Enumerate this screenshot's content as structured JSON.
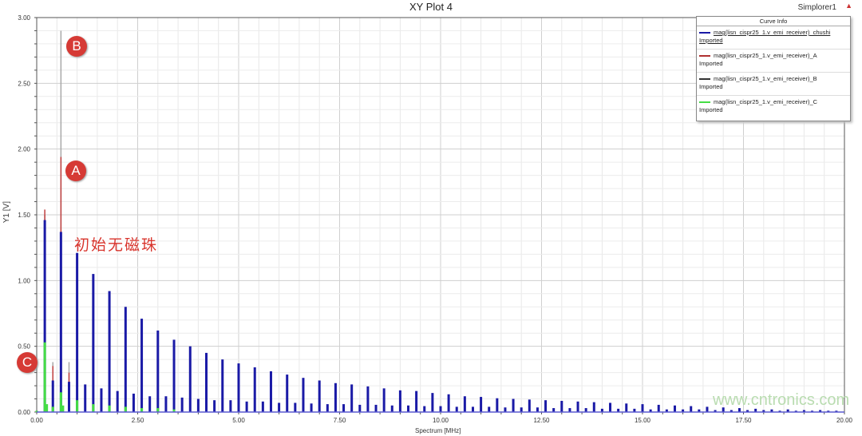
{
  "header": {
    "title": "XY Plot 4",
    "app": "Simplorer1"
  },
  "legend": {
    "title": "Curve Info",
    "items": [
      {
        "name": "mag(lisn_cispr25_1.v_emi_receiver)_chushi",
        "sub": "Imported",
        "color": "#1a1aa6"
      },
      {
        "name": "mag(lisn_cispr25_1.v_emi_receiver)_A",
        "sub": "Imported",
        "color": "#b03030"
      },
      {
        "name": "mag(lisn_cispr25_1.v_emi_receiver)_B",
        "sub": "Imported",
        "color": "#333333"
      },
      {
        "name": "mag(lisn_cispr25_1.v_emi_receiver)_C",
        "sub": "Imported",
        "color": "#44dd44"
      }
    ]
  },
  "annotations": {
    "a": "A",
    "b": "B",
    "c": "C",
    "note": "初始无磁珠",
    "watermark": "www.cntronics.com"
  },
  "chart_data": {
    "type": "bar",
    "title": "XY Plot 4",
    "xlabel": "Spectrum [MHz]",
    "ylabel": "Y1 [V]",
    "xlim": [
      0,
      20
    ],
    "ylim": [
      0,
      3
    ],
    "xticks": [
      "0.00",
      "2.50",
      "5.00",
      "7.50",
      "10.00",
      "12.50",
      "15.00",
      "17.50",
      "20.00"
    ],
    "yticks": [
      "0.00",
      "0.50",
      "1.00",
      "1.50",
      "2.00",
      "2.50",
      "3.00"
    ],
    "grid": true,
    "legend_position": "top-right",
    "series": [
      {
        "name": "mag(lisn_cispr25_1.v_emi_receiver)_B",
        "color": "#a8a8a8",
        "x": [
          0.2,
          0.4,
          0.6,
          0.8
        ],
        "y": [
          1.5,
          0.38,
          2.9,
          0.38
        ]
      },
      {
        "name": "mag(lisn_cispr25_1.v_emi_receiver)_A",
        "color": "#c04040",
        "x": [
          0.2,
          0.4,
          0.6,
          0.8,
          1.4
        ],
        "y": [
          1.54,
          0.35,
          1.94,
          0.3,
          0.45
        ]
      },
      {
        "name": "mag(lisn_cispr25_1.v_emi_receiver)_chushi",
        "color": "#1a1aa6",
        "x": [
          0.2,
          0.4,
          0.6,
          0.8,
          1.0,
          1.2,
          1.4,
          1.6,
          1.8,
          2.0,
          2.2,
          2.4,
          2.6,
          2.8,
          3.0,
          3.2,
          3.4,
          3.6,
          3.8,
          4.0,
          4.2,
          4.4,
          4.6,
          4.8,
          5.0,
          5.2,
          5.4,
          5.6,
          5.8,
          6.0,
          6.2,
          6.4,
          6.6,
          6.8,
          7.0,
          7.2,
          7.4,
          7.6,
          7.8,
          8.0,
          8.2,
          8.4,
          8.6,
          8.8,
          9.0,
          9.2,
          9.4,
          9.6,
          9.8,
          10.0,
          10.2,
          10.4,
          10.6,
          10.8,
          11.0,
          11.2,
          11.4,
          11.6,
          11.8,
          12.0,
          12.2,
          12.4,
          12.6,
          12.8,
          13.0,
          13.2,
          13.4,
          13.6,
          13.8,
          14.0,
          14.2,
          14.4,
          14.6,
          14.8,
          15.0,
          15.2,
          15.4,
          15.6,
          15.8,
          16.0,
          16.2,
          16.4,
          16.6,
          16.8,
          17.0,
          17.2,
          17.4,
          17.6,
          17.8,
          18.0,
          18.2,
          18.4,
          18.6,
          18.8,
          19.0,
          19.2,
          19.4,
          19.6,
          19.8
        ],
        "y": [
          1.46,
          0.24,
          1.37,
          0.23,
          1.21,
          0.21,
          1.05,
          0.18,
          0.92,
          0.16,
          0.8,
          0.14,
          0.71,
          0.12,
          0.62,
          0.12,
          0.55,
          0.11,
          0.5,
          0.1,
          0.45,
          0.09,
          0.4,
          0.09,
          0.37,
          0.08,
          0.34,
          0.08,
          0.31,
          0.07,
          0.285,
          0.07,
          0.26,
          0.065,
          0.24,
          0.06,
          0.22,
          0.06,
          0.21,
          0.055,
          0.195,
          0.055,
          0.18,
          0.05,
          0.165,
          0.05,
          0.16,
          0.045,
          0.145,
          0.045,
          0.135,
          0.04,
          0.12,
          0.04,
          0.115,
          0.04,
          0.105,
          0.035,
          0.1,
          0.035,
          0.095,
          0.035,
          0.09,
          0.03,
          0.085,
          0.03,
          0.08,
          0.03,
          0.075,
          0.025,
          0.07,
          0.025,
          0.065,
          0.025,
          0.06,
          0.02,
          0.055,
          0.02,
          0.05,
          0.02,
          0.045,
          0.02,
          0.04,
          0.015,
          0.035,
          0.015,
          0.03,
          0.015,
          0.025,
          0.015,
          0.02,
          0.01,
          0.02,
          0.01,
          0.015,
          0.01,
          0.015,
          0.01,
          0.01
        ]
      },
      {
        "name": "mag(lisn_cispr25_1.v_emi_receiver)_C",
        "color": "#44dd44",
        "x": [
          0.0,
          0.2,
          0.25,
          0.4,
          0.6,
          0.65,
          1.0,
          1.4,
          1.8,
          2.2,
          2.6,
          3.0,
          3.4
        ],
        "y": [
          0.01,
          0.53,
          0.06,
          0.04,
          0.15,
          0.05,
          0.09,
          0.06,
          0.05,
          0.04,
          0.03,
          0.03,
          0.02
        ]
      }
    ]
  }
}
